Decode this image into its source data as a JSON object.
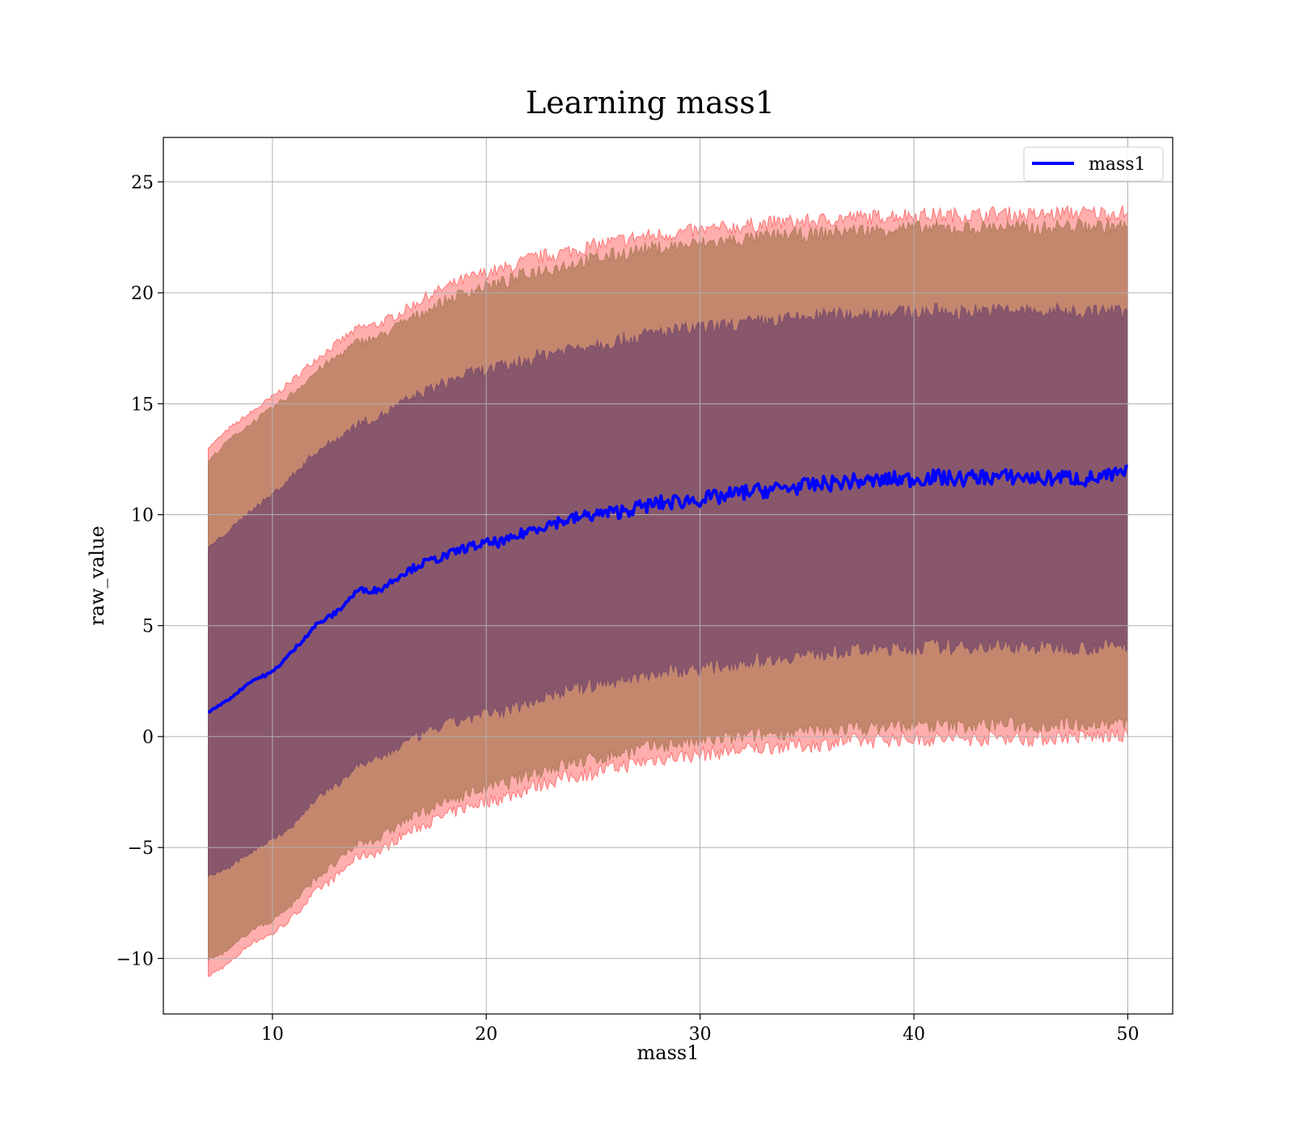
{
  "chart_data": {
    "type": "line",
    "title": "Learning mass1",
    "xlabel": "mass1",
    "ylabel": "raw_value",
    "xlim": [
      4.9,
      52.1
    ],
    "ylim": [
      -12.5,
      27.0
    ],
    "xticks": [
      10,
      20,
      30,
      40,
      50
    ],
    "yticks": [
      -10,
      -5,
      0,
      5,
      10,
      15,
      20,
      25
    ],
    "ytick_labels": [
      "−10",
      "−5",
      "0",
      "5",
      "10",
      "15",
      "20",
      "25"
    ],
    "grid": true,
    "legend_position": "top-right",
    "series": [
      {
        "name": "mass1",
        "color": "#0000ff",
        "x": [
          7,
          8,
          9,
          10,
          11,
          12,
          13,
          14,
          15,
          16,
          17,
          18,
          19,
          20,
          21,
          22,
          23,
          24,
          25,
          26,
          27,
          28,
          29,
          30,
          31,
          32,
          33,
          34,
          35,
          36,
          37,
          38,
          39,
          40,
          41,
          42,
          43,
          44,
          45,
          46,
          47,
          48,
          49,
          50
        ],
        "values": [
          1.1,
          1.7,
          2.5,
          2.9,
          3.9,
          5.0,
          5.6,
          6.6,
          6.6,
          7.3,
          7.8,
          8.1,
          8.5,
          8.7,
          8.8,
          9.3,
          9.6,
          9.8,
          10.0,
          10.1,
          10.3,
          10.5,
          10.6,
          10.7,
          10.8,
          11.0,
          11.1,
          11.2,
          11.3,
          11.4,
          11.5,
          11.5,
          11.6,
          11.6,
          11.7,
          11.6,
          11.7,
          11.7,
          11.7,
          11.6,
          11.7,
          11.6,
          11.7,
          11.9
        ]
      }
    ],
    "bands": [
      {
        "kind": "outer",
        "color": "#ff6b6b",
        "upper": [
          13.0,
          13.9,
          14.6,
          15.3,
          16.1,
          17.0,
          17.7,
          18.4,
          18.6,
          19.1,
          19.7,
          20.2,
          20.6,
          20.9,
          21.1,
          21.5,
          21.7,
          21.9,
          22.1,
          22.3,
          22.5,
          22.6,
          22.7,
          22.8,
          22.9,
          23.0,
          23.1,
          23.2,
          23.2,
          23.3,
          23.4,
          23.4,
          23.5,
          23.5,
          23.5,
          23.5,
          23.5,
          23.6,
          23.5,
          23.5,
          23.6,
          23.6,
          23.6,
          23.6
        ],
        "lower": [
          -10.8,
          -10.2,
          -9.3,
          -8.9,
          -8.1,
          -7.0,
          -6.3,
          -5.4,
          -5.2,
          -4.5,
          -4.0,
          -3.6,
          -3.2,
          -2.9,
          -2.7,
          -2.3,
          -2.0,
          -1.8,
          -1.6,
          -1.4,
          -1.2,
          -1.0,
          -0.9,
          -0.8,
          -0.7,
          -0.6,
          -0.5,
          -0.4,
          -0.4,
          -0.3,
          -0.2,
          -0.2,
          -0.1,
          -0.1,
          -0.1,
          -0.1,
          -0.1,
          0.0,
          -0.1,
          -0.1,
          0.0,
          0.0,
          0.0,
          0.0
        ]
      },
      {
        "kind": "middle",
        "color": "#b07a58",
        "upper": [
          12.4,
          13.4,
          14.1,
          14.8,
          15.5,
          16.4,
          17.1,
          17.8,
          18.0,
          18.6,
          19.1,
          19.6,
          20.0,
          20.3,
          20.5,
          20.9,
          21.1,
          21.3,
          21.5,
          21.7,
          21.9,
          22.0,
          22.1,
          22.2,
          22.3,
          22.4,
          22.5,
          22.6,
          22.6,
          22.7,
          22.8,
          22.8,
          22.9,
          22.9,
          22.9,
          22.9,
          22.9,
          23.0,
          22.9,
          22.9,
          23.0,
          23.0,
          23.0,
          23.0
        ],
        "lower": [
          -10.1,
          -9.6,
          -8.7,
          -8.3,
          -7.5,
          -6.4,
          -5.7,
          -4.8,
          -4.6,
          -3.9,
          -3.4,
          -3.0,
          -2.6,
          -2.3,
          -2.1,
          -1.7,
          -1.4,
          -1.2,
          -1.0,
          -0.8,
          -0.6,
          -0.4,
          -0.3,
          -0.2,
          -0.1,
          0.0,
          0.1,
          0.2,
          0.2,
          0.3,
          0.4,
          0.4,
          0.5,
          0.5,
          0.5,
          0.5,
          0.5,
          0.6,
          0.5,
          0.5,
          0.6,
          0.6,
          0.6,
          0.6
        ]
      },
      {
        "kind": "inner",
        "color": "#7a4b6b",
        "upper": [
          8.5,
          9.3,
          10.2,
          10.9,
          11.8,
          12.8,
          13.4,
          14.1,
          14.4,
          15.0,
          15.5,
          15.9,
          16.3,
          16.5,
          16.7,
          17.0,
          17.3,
          17.5,
          17.7,
          17.8,
          18.0,
          18.2,
          18.3,
          18.4,
          18.5,
          18.6,
          18.7,
          18.8,
          18.9,
          19.0,
          19.0,
          19.1,
          19.1,
          19.1,
          19.2,
          19.1,
          19.2,
          19.2,
          19.2,
          19.1,
          19.2,
          19.1,
          19.2,
          19.1
        ],
        "lower": [
          -6.3,
          -5.9,
          -5.2,
          -4.6,
          -4.0,
          -2.8,
          -2.2,
          -1.3,
          -1.0,
          -0.4,
          0.1,
          0.5,
          0.8,
          1.0,
          1.2,
          1.6,
          1.9,
          2.2,
          2.3,
          2.5,
          2.7,
          2.9,
          3.0,
          3.1,
          3.2,
          3.4,
          3.5,
          3.6,
          3.7,
          3.8,
          3.9,
          3.9,
          4.0,
          4.0,
          4.1,
          4.0,
          4.1,
          4.1,
          4.1,
          4.0,
          4.1,
          4.0,
          4.1,
          4.1
        ]
      }
    ]
  }
}
